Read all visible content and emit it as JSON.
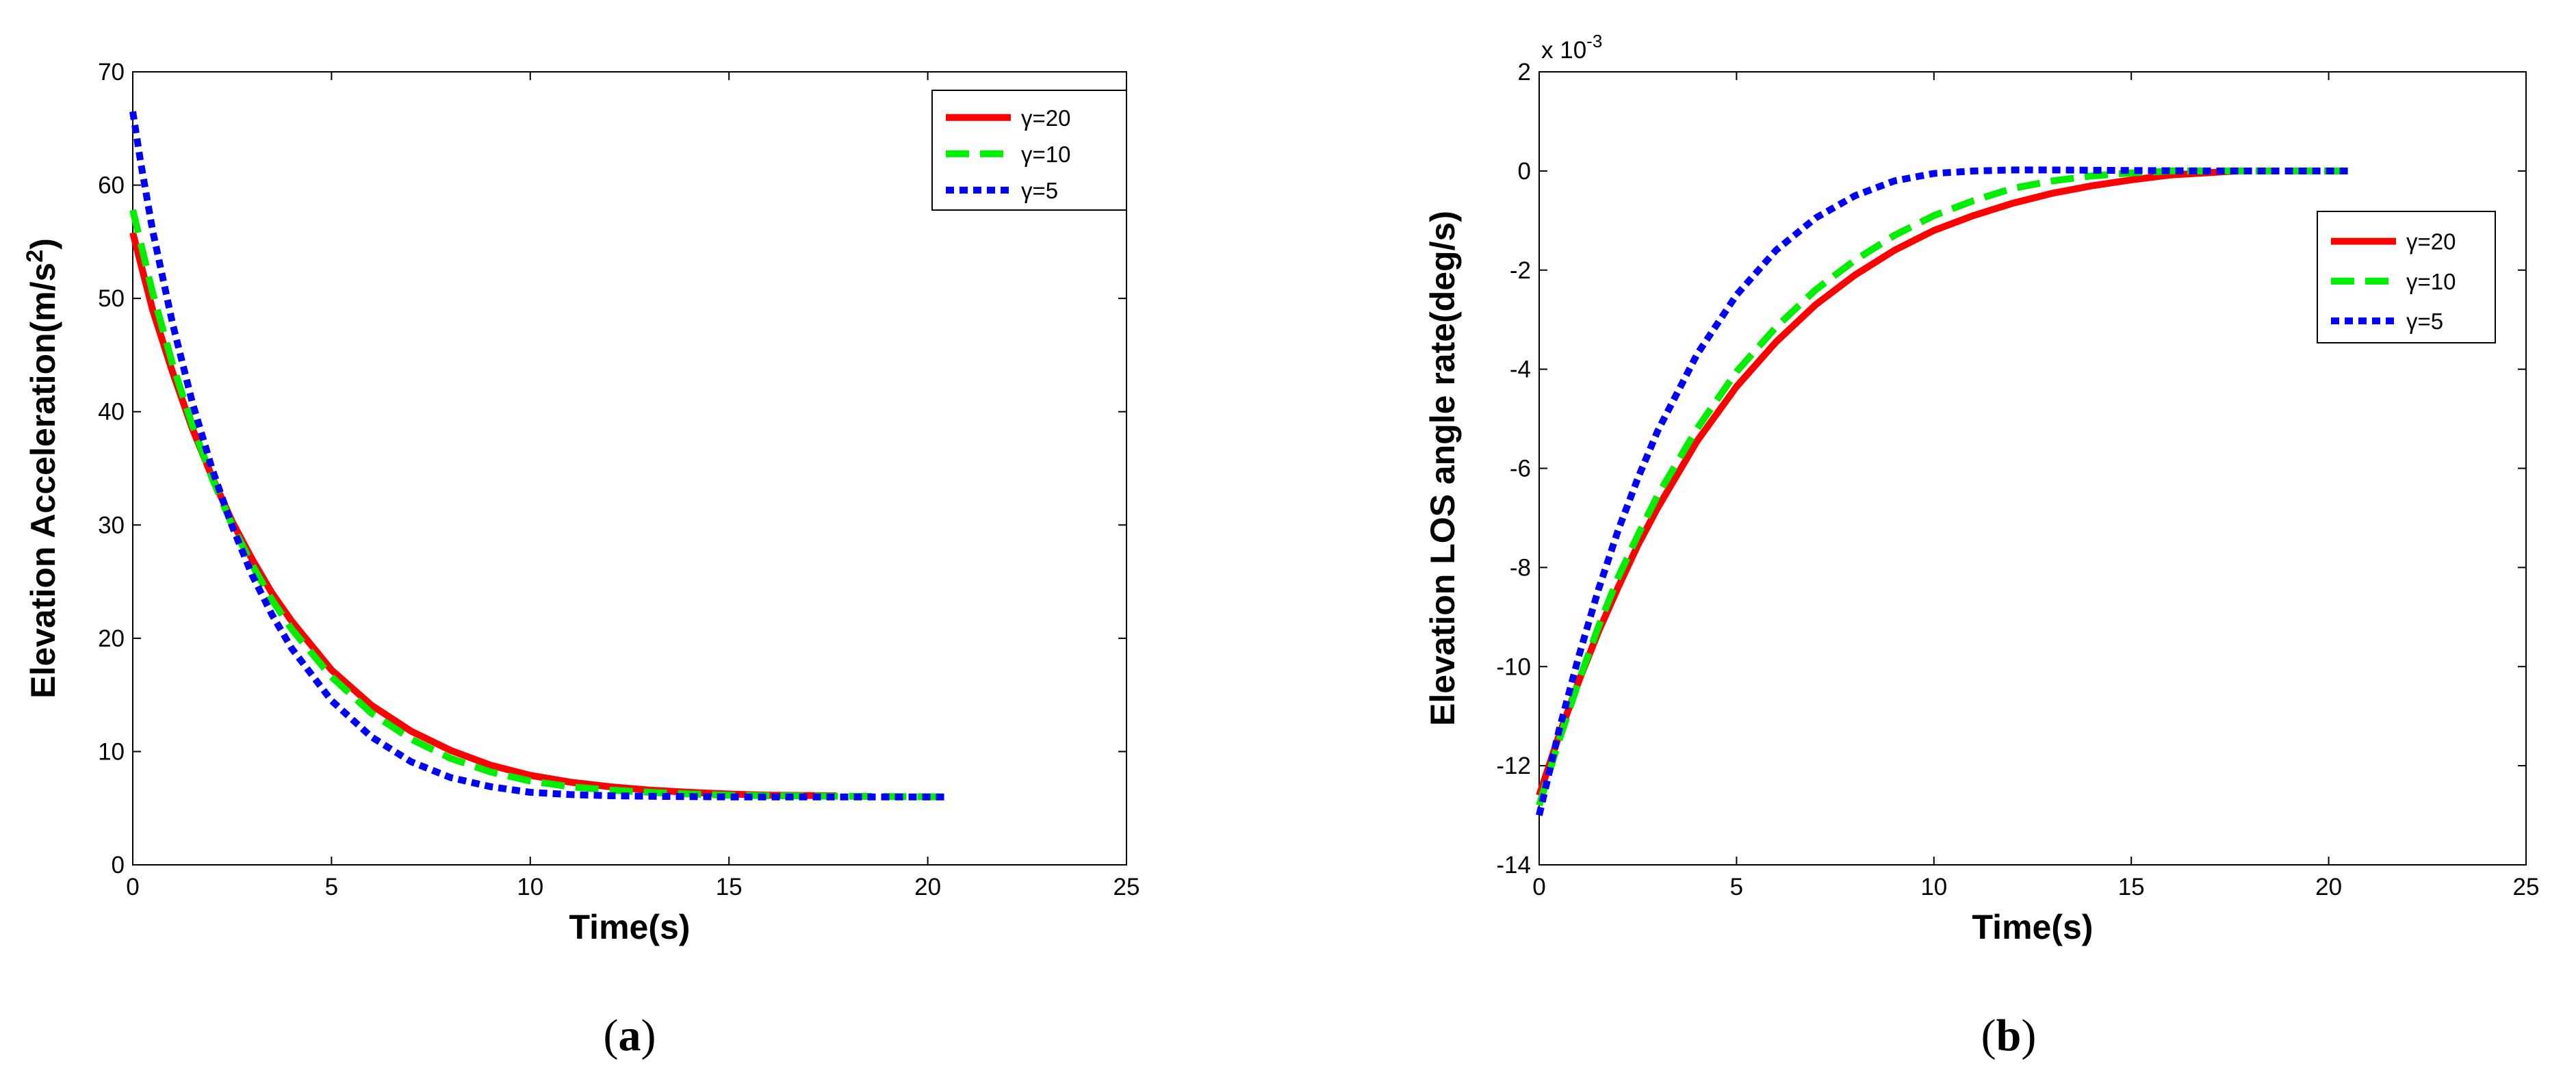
{
  "chart_data": [
    {
      "type": "line",
      "panel": "a",
      "caption_label": "a",
      "xlabel": "Time(s)",
      "ylabel": "Elevation Acceleration(m/s",
      "ylabel_sup": "2",
      "ylabel_close": ")",
      "xlim": [
        0,
        25
      ],
      "ylim": [
        0,
        70
      ],
      "xticks": [
        0,
        5,
        10,
        15,
        20,
        25
      ],
      "yticks": [
        0,
        10,
        20,
        30,
        40,
        50,
        60,
        70
      ],
      "y_exponent_label": "",
      "grid": false,
      "legend_position": "top-right",
      "series": [
        {
          "name": "γ=20",
          "color": "#ff0000",
          "style": "solid",
          "x": [
            0,
            0.5,
            1,
            1.5,
            2,
            2.5,
            3,
            3.5,
            4,
            5,
            6,
            7,
            8,
            9,
            10,
            11,
            12,
            13,
            14,
            15,
            16,
            17.7
          ],
          "y": [
            55.8,
            49,
            43.5,
            38.5,
            34.2,
            30.3,
            27,
            24,
            21.5,
            17.2,
            14.1,
            11.8,
            10.1,
            8.8,
            7.9,
            7.3,
            6.9,
            6.6,
            6.4,
            6.25,
            6.15,
            6.1
          ]
        },
        {
          "name": "γ=10",
          "color": "#00ee00",
          "style": "dashed",
          "x": [
            0,
            0.5,
            1,
            1.5,
            2,
            2.5,
            3,
            3.5,
            4,
            5,
            6,
            7,
            8,
            9,
            10,
            11,
            12,
            13,
            14,
            15,
            16,
            18,
            20.5
          ],
          "y": [
            57.8,
            50.5,
            44.2,
            38.8,
            34.1,
            30,
            26.5,
            23.4,
            20.8,
            16.6,
            13.4,
            11.1,
            9.4,
            8.2,
            7.4,
            6.9,
            6.6,
            6.4,
            6.25,
            6.15,
            6.1,
            6.05,
            6.0
          ]
        },
        {
          "name": "γ=5",
          "color": "#0000ff",
          "style": "dotted",
          "x": [
            0,
            0.2,
            0.5,
            1,
            1.5,
            2,
            2.5,
            3,
            3.5,
            4,
            5,
            6,
            7,
            8,
            9,
            10,
            11,
            12,
            13,
            15,
            17,
            20.5
          ],
          "y": [
            66.5,
            62,
            56,
            47.8,
            40.8,
            34.9,
            29.9,
            25.6,
            22.1,
            19.1,
            14.5,
            11.3,
            9.1,
            7.7,
            6.9,
            6.4,
            6.2,
            6.1,
            6.05,
            6.0,
            6.0,
            6.0
          ]
        }
      ]
    },
    {
      "type": "line",
      "panel": "b",
      "caption_label": "b",
      "xlabel": "Time(s)",
      "ylabel": "Elevation LOS angle rate(deg/s)",
      "ylabel_sup": "",
      "ylabel_close": "",
      "xlim": [
        0,
        25
      ],
      "ylim": [
        -14,
        2
      ],
      "xticks": [
        0,
        5,
        10,
        15,
        20,
        25
      ],
      "yticks": [
        -14,
        -12,
        -10,
        -8,
        -6,
        -4,
        -2,
        0,
        2
      ],
      "y_exponent_label": "x 10",
      "y_exponent_sup": "-3",
      "grid": false,
      "legend_position": "right",
      "series": [
        {
          "name": "γ=20",
          "color": "#ff0000",
          "style": "solid",
          "x": [
            0,
            0.5,
            1,
            1.5,
            2,
            2.5,
            3,
            4,
            5,
            6,
            7,
            8,
            9,
            10,
            11,
            12,
            13,
            14,
            15,
            16,
            17.7
          ],
          "y": [
            -12.6,
            -11.4,
            -10.3,
            -9.3,
            -8.4,
            -7.55,
            -6.8,
            -5.45,
            -4.35,
            -3.45,
            -2.7,
            -2.1,
            -1.6,
            -1.2,
            -0.9,
            -0.65,
            -0.45,
            -0.3,
            -0.18,
            -0.08,
            0
          ]
        },
        {
          "name": "γ=10",
          "color": "#00ee00",
          "style": "dashed",
          "x": [
            0,
            0.5,
            1,
            1.5,
            2,
            2.5,
            3,
            4,
            5,
            6,
            7,
            8,
            9,
            10,
            11,
            12,
            13,
            14,
            15,
            16,
            18,
            20.5
          ],
          "y": [
            -12.8,
            -11.5,
            -10.3,
            -9.2,
            -8.2,
            -7.35,
            -6.55,
            -5.2,
            -4.05,
            -3.15,
            -2.4,
            -1.8,
            -1.3,
            -0.9,
            -0.6,
            -0.35,
            -0.2,
            -0.1,
            -0.04,
            0,
            0,
            0
          ]
        },
        {
          "name": "γ=5",
          "color": "#0000ff",
          "style": "dotted",
          "x": [
            0,
            0.5,
            1,
            1.5,
            2,
            2.5,
            3,
            4,
            5,
            6,
            7,
            8,
            9,
            10,
            11,
            12,
            13,
            15,
            17,
            20.5
          ],
          "y": [
            -13.0,
            -11.3,
            -9.8,
            -8.45,
            -7.25,
            -6.2,
            -5.25,
            -3.7,
            -2.5,
            -1.6,
            -0.95,
            -0.5,
            -0.2,
            -0.05,
            0,
            0.02,
            0.02,
            0.01,
            0,
            0
          ]
        }
      ]
    }
  ]
}
